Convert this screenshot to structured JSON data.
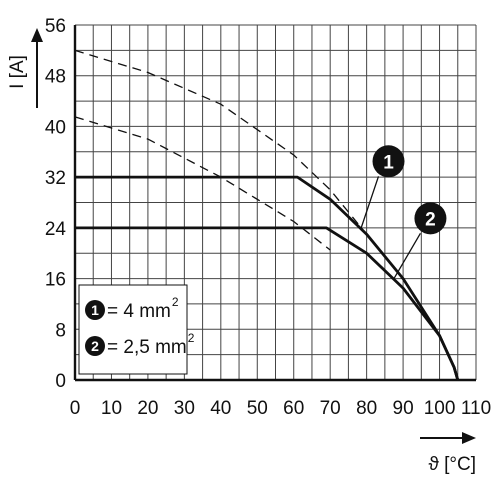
{
  "chart_data": {
    "type": "line",
    "xlabel": "ϑ [°C]",
    "ylabel": "I [A]",
    "xlim": [
      0,
      110
    ],
    "ylim": [
      0,
      56
    ],
    "xticks": [
      0,
      10,
      20,
      30,
      40,
      50,
      60,
      70,
      80,
      90,
      100,
      110
    ],
    "yticks": [
      0,
      8,
      16,
      24,
      32,
      40,
      48,
      56
    ],
    "grid": true,
    "legend": {
      "placement": "bottom-left",
      "entries": [
        {
          "marker": "1",
          "text": "= 4 mm",
          "sup": "2"
        },
        {
          "marker": "2",
          "text": "= 2,5 mm",
          "sup": "2"
        }
      ]
    },
    "series": [
      {
        "marker": "1",
        "style": "solid",
        "x": [
          0,
          61,
          70,
          80,
          90,
          100,
          104,
          105
        ],
        "y": [
          32,
          32,
          28.5,
          23,
          16,
          7,
          2,
          0
        ]
      },
      {
        "marker": "2",
        "style": "solid",
        "x": [
          0,
          69,
          80,
          90,
          100,
          104,
          105
        ],
        "y": [
          24,
          24,
          20,
          14.5,
          7,
          2,
          0
        ]
      },
      {
        "marker": "1",
        "style": "dashed",
        "x": [
          0,
          20,
          40,
          60,
          70,
          80
        ],
        "y": [
          52,
          48.5,
          43.5,
          35.5,
          30,
          23
        ]
      },
      {
        "marker": "2",
        "style": "dashed",
        "x": [
          0,
          20,
          40,
          60,
          70
        ],
        "y": [
          41.5,
          38,
          32,
          25,
          20.5
        ]
      }
    ],
    "annotations": [
      {
        "marker": "1",
        "x": 86,
        "y": 34.5
      },
      {
        "marker": "2",
        "x": 97.5,
        "y": 25.5
      }
    ]
  }
}
